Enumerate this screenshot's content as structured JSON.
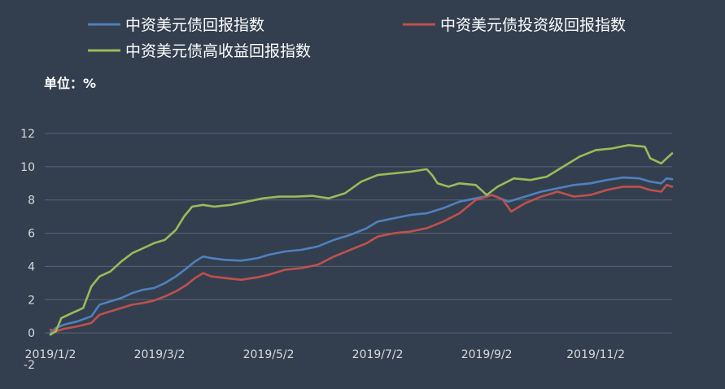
{
  "chart_data": {
    "type": "line",
    "unit_label": "单位：%",
    "ylim": [
      -2,
      12
    ],
    "yticks": [
      -2,
      0,
      2,
      4,
      6,
      8,
      10,
      12
    ],
    "grid": true,
    "legend_position": "top",
    "x_ticks": [
      "2019/1/2",
      "2019/3/2",
      "2019/5/2",
      "2019/7/2",
      "2019/9/2",
      "2019/11/2"
    ],
    "x_tick_pos": [
      0,
      2,
      4,
      6,
      8,
      10
    ],
    "x_end_pos": 11.4,
    "colors": {
      "background": "#333F4F",
      "gridline": "#5A6677",
      "axis_text": "#D9D9D9",
      "legend_text": "#FFFFFF",
      "unit_text": "#FFFFFF"
    },
    "series": [
      {
        "name": "中资美元债回报指数",
        "color": "#4F81BD",
        "points": [
          [
            0,
            0.0
          ],
          [
            0.1,
            0.3
          ],
          [
            0.25,
            0.5
          ],
          [
            0.5,
            0.7
          ],
          [
            0.75,
            1.0
          ],
          [
            0.9,
            1.7
          ],
          [
            1.1,
            1.9
          ],
          [
            1.3,
            2.1
          ],
          [
            1.5,
            2.4
          ],
          [
            1.7,
            2.6
          ],
          [
            1.9,
            2.7
          ],
          [
            2.1,
            3.0
          ],
          [
            2.3,
            3.4
          ],
          [
            2.5,
            3.9
          ],
          [
            2.65,
            4.3
          ],
          [
            2.8,
            4.6
          ],
          [
            2.95,
            4.5
          ],
          [
            3.2,
            4.4
          ],
          [
            3.5,
            4.35
          ],
          [
            3.8,
            4.5
          ],
          [
            4.0,
            4.7
          ],
          [
            4.3,
            4.9
          ],
          [
            4.6,
            5.0
          ],
          [
            4.9,
            5.2
          ],
          [
            5.2,
            5.6
          ],
          [
            5.5,
            5.9
          ],
          [
            5.8,
            6.3
          ],
          [
            6.0,
            6.7
          ],
          [
            6.3,
            6.9
          ],
          [
            6.6,
            7.1
          ],
          [
            6.9,
            7.2
          ],
          [
            7.2,
            7.5
          ],
          [
            7.5,
            7.9
          ],
          [
            7.8,
            8.1
          ],
          [
            8.1,
            8.3
          ],
          [
            8.4,
            7.9
          ],
          [
            8.7,
            8.2
          ],
          [
            9.0,
            8.5
          ],
          [
            9.3,
            8.7
          ],
          [
            9.6,
            8.9
          ],
          [
            9.9,
            9.0
          ],
          [
            10.2,
            9.2
          ],
          [
            10.5,
            9.35
          ],
          [
            10.8,
            9.3
          ],
          [
            11.0,
            9.1
          ],
          [
            11.2,
            9.0
          ],
          [
            11.3,
            9.3
          ],
          [
            11.4,
            9.25
          ]
        ]
      },
      {
        "name": "中资美元债投资级回报指数",
        "color": "#C0504D",
        "points": [
          [
            0,
            0.2
          ],
          [
            0.1,
            0.1
          ],
          [
            0.25,
            0.25
          ],
          [
            0.5,
            0.4
          ],
          [
            0.75,
            0.6
          ],
          [
            0.9,
            1.1
          ],
          [
            1.1,
            1.3
          ],
          [
            1.3,
            1.5
          ],
          [
            1.5,
            1.7
          ],
          [
            1.7,
            1.8
          ],
          [
            1.9,
            1.95
          ],
          [
            2.1,
            2.2
          ],
          [
            2.3,
            2.5
          ],
          [
            2.5,
            2.9
          ],
          [
            2.65,
            3.3
          ],
          [
            2.8,
            3.6
          ],
          [
            2.95,
            3.4
          ],
          [
            3.2,
            3.3
          ],
          [
            3.5,
            3.2
          ],
          [
            3.8,
            3.35
          ],
          [
            4.0,
            3.5
          ],
          [
            4.3,
            3.8
          ],
          [
            4.6,
            3.9
          ],
          [
            4.9,
            4.1
          ],
          [
            5.2,
            4.6
          ],
          [
            5.5,
            5.0
          ],
          [
            5.8,
            5.4
          ],
          [
            6.0,
            5.8
          ],
          [
            6.3,
            6.0
          ],
          [
            6.6,
            6.1
          ],
          [
            6.9,
            6.3
          ],
          [
            7.2,
            6.7
          ],
          [
            7.5,
            7.2
          ],
          [
            7.8,
            8.0
          ],
          [
            8.1,
            8.3
          ],
          [
            8.3,
            8.0
          ],
          [
            8.45,
            7.3
          ],
          [
            8.7,
            7.8
          ],
          [
            9.0,
            8.2
          ],
          [
            9.3,
            8.5
          ],
          [
            9.6,
            8.2
          ],
          [
            9.9,
            8.3
          ],
          [
            10.2,
            8.6
          ],
          [
            10.5,
            8.8
          ],
          [
            10.8,
            8.8
          ],
          [
            11.0,
            8.6
          ],
          [
            11.2,
            8.5
          ],
          [
            11.3,
            8.9
          ],
          [
            11.4,
            8.8
          ]
        ]
      },
      {
        "name": "中资美元债高收益回报指数",
        "color": "#9BBB59",
        "points": [
          [
            0,
            -0.1
          ],
          [
            0.1,
            0.1
          ],
          [
            0.2,
            0.9
          ],
          [
            0.4,
            1.2
          ],
          [
            0.6,
            1.5
          ],
          [
            0.75,
            2.8
          ],
          [
            0.9,
            3.4
          ],
          [
            1.1,
            3.7
          ],
          [
            1.3,
            4.3
          ],
          [
            1.5,
            4.8
          ],
          [
            1.7,
            5.1
          ],
          [
            1.9,
            5.4
          ],
          [
            2.1,
            5.6
          ],
          [
            2.3,
            6.2
          ],
          [
            2.45,
            7.0
          ],
          [
            2.6,
            7.6
          ],
          [
            2.8,
            7.7
          ],
          [
            3.0,
            7.6
          ],
          [
            3.3,
            7.7
          ],
          [
            3.6,
            7.9
          ],
          [
            3.9,
            8.1
          ],
          [
            4.2,
            8.2
          ],
          [
            4.5,
            8.2
          ],
          [
            4.8,
            8.25
          ],
          [
            5.1,
            8.1
          ],
          [
            5.4,
            8.4
          ],
          [
            5.7,
            9.1
          ],
          [
            6.0,
            9.5
          ],
          [
            6.3,
            9.6
          ],
          [
            6.6,
            9.7
          ],
          [
            6.9,
            9.85
          ],
          [
            7.0,
            9.5
          ],
          [
            7.1,
            9.0
          ],
          [
            7.3,
            8.8
          ],
          [
            7.5,
            9.0
          ],
          [
            7.8,
            8.9
          ],
          [
            8.0,
            8.3
          ],
          [
            8.2,
            8.8
          ],
          [
            8.5,
            9.3
          ],
          [
            8.8,
            9.2
          ],
          [
            9.1,
            9.4
          ],
          [
            9.4,
            10.0
          ],
          [
            9.7,
            10.6
          ],
          [
            10.0,
            11.0
          ],
          [
            10.3,
            11.1
          ],
          [
            10.6,
            11.3
          ],
          [
            10.9,
            11.2
          ],
          [
            11.0,
            10.5
          ],
          [
            11.2,
            10.2
          ],
          [
            11.3,
            10.5
          ],
          [
            11.4,
            10.8
          ]
        ]
      }
    ]
  }
}
